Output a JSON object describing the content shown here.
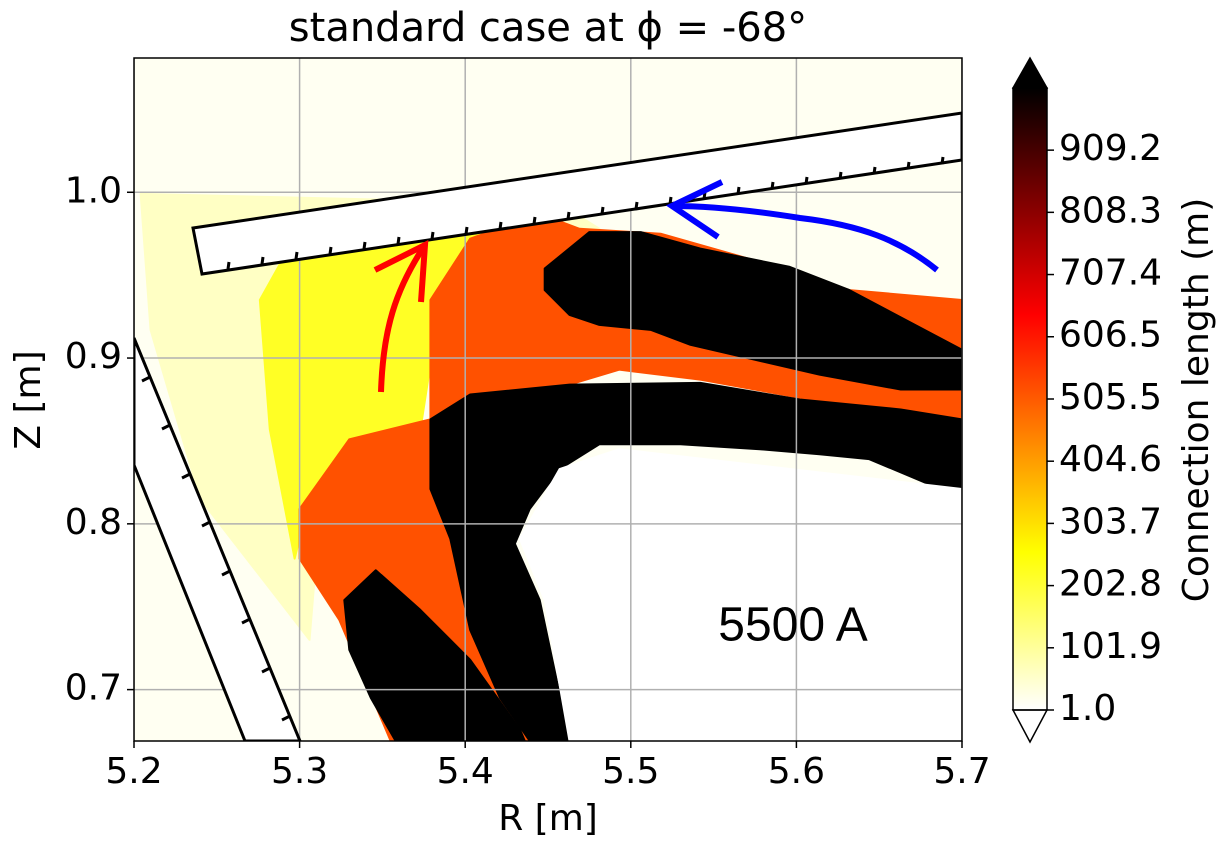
{
  "chart_data": {
    "type": "contour",
    "title": "standard case at ϕ = -68°",
    "x_label": "R [m]",
    "y_label": "Z [m]",
    "annotation": "5500 A",
    "xlim": [
      5.2,
      5.7
    ],
    "ylim": [
      0.669,
      1.081
    ],
    "xticks": [
      5.2,
      5.3,
      5.4,
      5.5,
      5.6,
      5.7
    ],
    "yticks": [
      0.7,
      0.8,
      0.9,
      {
        "value": 1.0,
        "label": "1.0"
      }
    ],
    "grid": true,
    "colormap": "hot_r",
    "colorbar": {
      "label": "Connection length (m)",
      "clim": [
        1.0,
        1010
      ],
      "ticks": [
        {
          "value": 1.0,
          "label": "1.0"
        },
        101.9,
        202.8,
        303.7,
        404.6,
        505.5,
        606.5,
        707.4,
        808.3,
        909.2
      ]
    },
    "regions": [
      {
        "level": 60,
        "points": [
          [
            5.204,
            0.999
          ],
          [
            5.457,
            0.993
          ],
          [
            5.481,
            0.978
          ],
          [
            5.379,
            0.935
          ],
          [
            5.373,
            0.851
          ],
          [
            5.312,
            0.803
          ],
          [
            5.306,
            0.73
          ],
          [
            5.24,
            0.815
          ],
          [
            5.21,
            0.917
          ]
        ]
      },
      {
        "level": 220,
        "points": [
          [
            5.3,
            0.978
          ],
          [
            5.433,
            0.987
          ],
          [
            5.385,
            0.935
          ],
          [
            5.373,
            0.857
          ],
          [
            5.306,
            0.815
          ],
          [
            5.297,
            0.779
          ],
          [
            5.282,
            0.857
          ],
          [
            5.276,
            0.935
          ]
        ]
      },
      {
        "level": 520,
        "points": [
          [
            5.379,
            0.935
          ],
          [
            5.403,
            0.972
          ],
          [
            5.445,
            0.987
          ],
          [
            5.469,
            0.978
          ],
          [
            5.518,
            0.975
          ],
          [
            5.578,
            0.958
          ],
          [
            5.632,
            0.941
          ],
          [
            5.7,
            0.935
          ],
          [
            5.7,
            0.839
          ],
          [
            5.663,
            0.863
          ],
          [
            5.608,
            0.875
          ],
          [
            5.542,
            0.887
          ],
          [
            5.493,
            0.893
          ],
          [
            5.433,
            0.875
          ],
          [
            5.379,
            0.857
          ],
          [
            5.385,
            0.815
          ],
          [
            5.409,
            0.754
          ],
          [
            5.439,
            0.695
          ],
          [
            5.457,
            0.669
          ],
          [
            5.355,
            0.669
          ],
          [
            5.324,
            0.742
          ],
          [
            5.3,
            0.779
          ],
          [
            5.3,
            0.809
          ],
          [
            5.33,
            0.851
          ],
          [
            5.379,
            0.863
          ]
        ]
      },
      {
        "level": 1010,
        "points": [
          [
            5.448,
            0.954
          ],
          [
            5.475,
            0.976
          ],
          [
            5.506,
            0.976
          ],
          [
            5.542,
            0.966
          ],
          [
            5.596,
            0.955
          ],
          [
            5.632,
            0.941
          ],
          [
            5.7,
            0.905
          ],
          [
            5.7,
            0.881
          ],
          [
            5.663,
            0.881
          ],
          [
            5.614,
            0.89
          ],
          [
            5.536,
            0.908
          ],
          [
            5.512,
            0.917
          ],
          [
            5.481,
            0.92
          ],
          [
            5.463,
            0.926
          ],
          [
            5.448,
            0.941
          ]
        ]
      },
      {
        "level": 1010,
        "points": [
          [
            5.379,
            0.863
          ],
          [
            5.403,
            0.878
          ],
          [
            5.463,
            0.884
          ],
          [
            5.542,
            0.885
          ],
          [
            5.602,
            0.875
          ],
          [
            5.663,
            0.869
          ],
          [
            5.7,
            0.863
          ],
          [
            5.7,
            0.821
          ],
          [
            5.687,
            0.821
          ],
          [
            5.644,
            0.839
          ],
          [
            5.614,
            0.842
          ],
          [
            5.578,
            0.845
          ],
          [
            5.53,
            0.848
          ],
          [
            5.481,
            0.848
          ],
          [
            5.457,
            0.833
          ],
          [
            5.439,
            0.809
          ],
          [
            5.43,
            0.788
          ],
          [
            5.445,
            0.754
          ],
          [
            5.463,
            0.669
          ],
          [
            5.439,
            0.669
          ],
          [
            5.421,
            0.695
          ],
          [
            5.403,
            0.736
          ],
          [
            5.391,
            0.791
          ],
          [
            5.379,
            0.821
          ]
        ]
      },
      {
        "level": 1010,
        "points": [
          [
            5.327,
            0.754
          ],
          [
            5.346,
            0.772
          ],
          [
            5.373,
            0.748
          ],
          [
            5.403,
            0.718
          ],
          [
            5.433,
            0.676
          ],
          [
            5.436,
            0.669
          ],
          [
            5.358,
            0.669
          ],
          [
            5.343,
            0.695
          ],
          [
            5.33,
            0.724
          ]
        ]
      },
      {
        "level": 1.0,
        "points": [
          [
            5.433,
            0.791
          ],
          [
            5.457,
            0.833
          ],
          [
            5.493,
            0.845
          ],
          [
            5.7,
            0.821
          ],
          [
            5.7,
            0.669
          ],
          [
            5.463,
            0.669
          ],
          [
            5.448,
            0.754
          ]
        ]
      }
    ]
  }
}
